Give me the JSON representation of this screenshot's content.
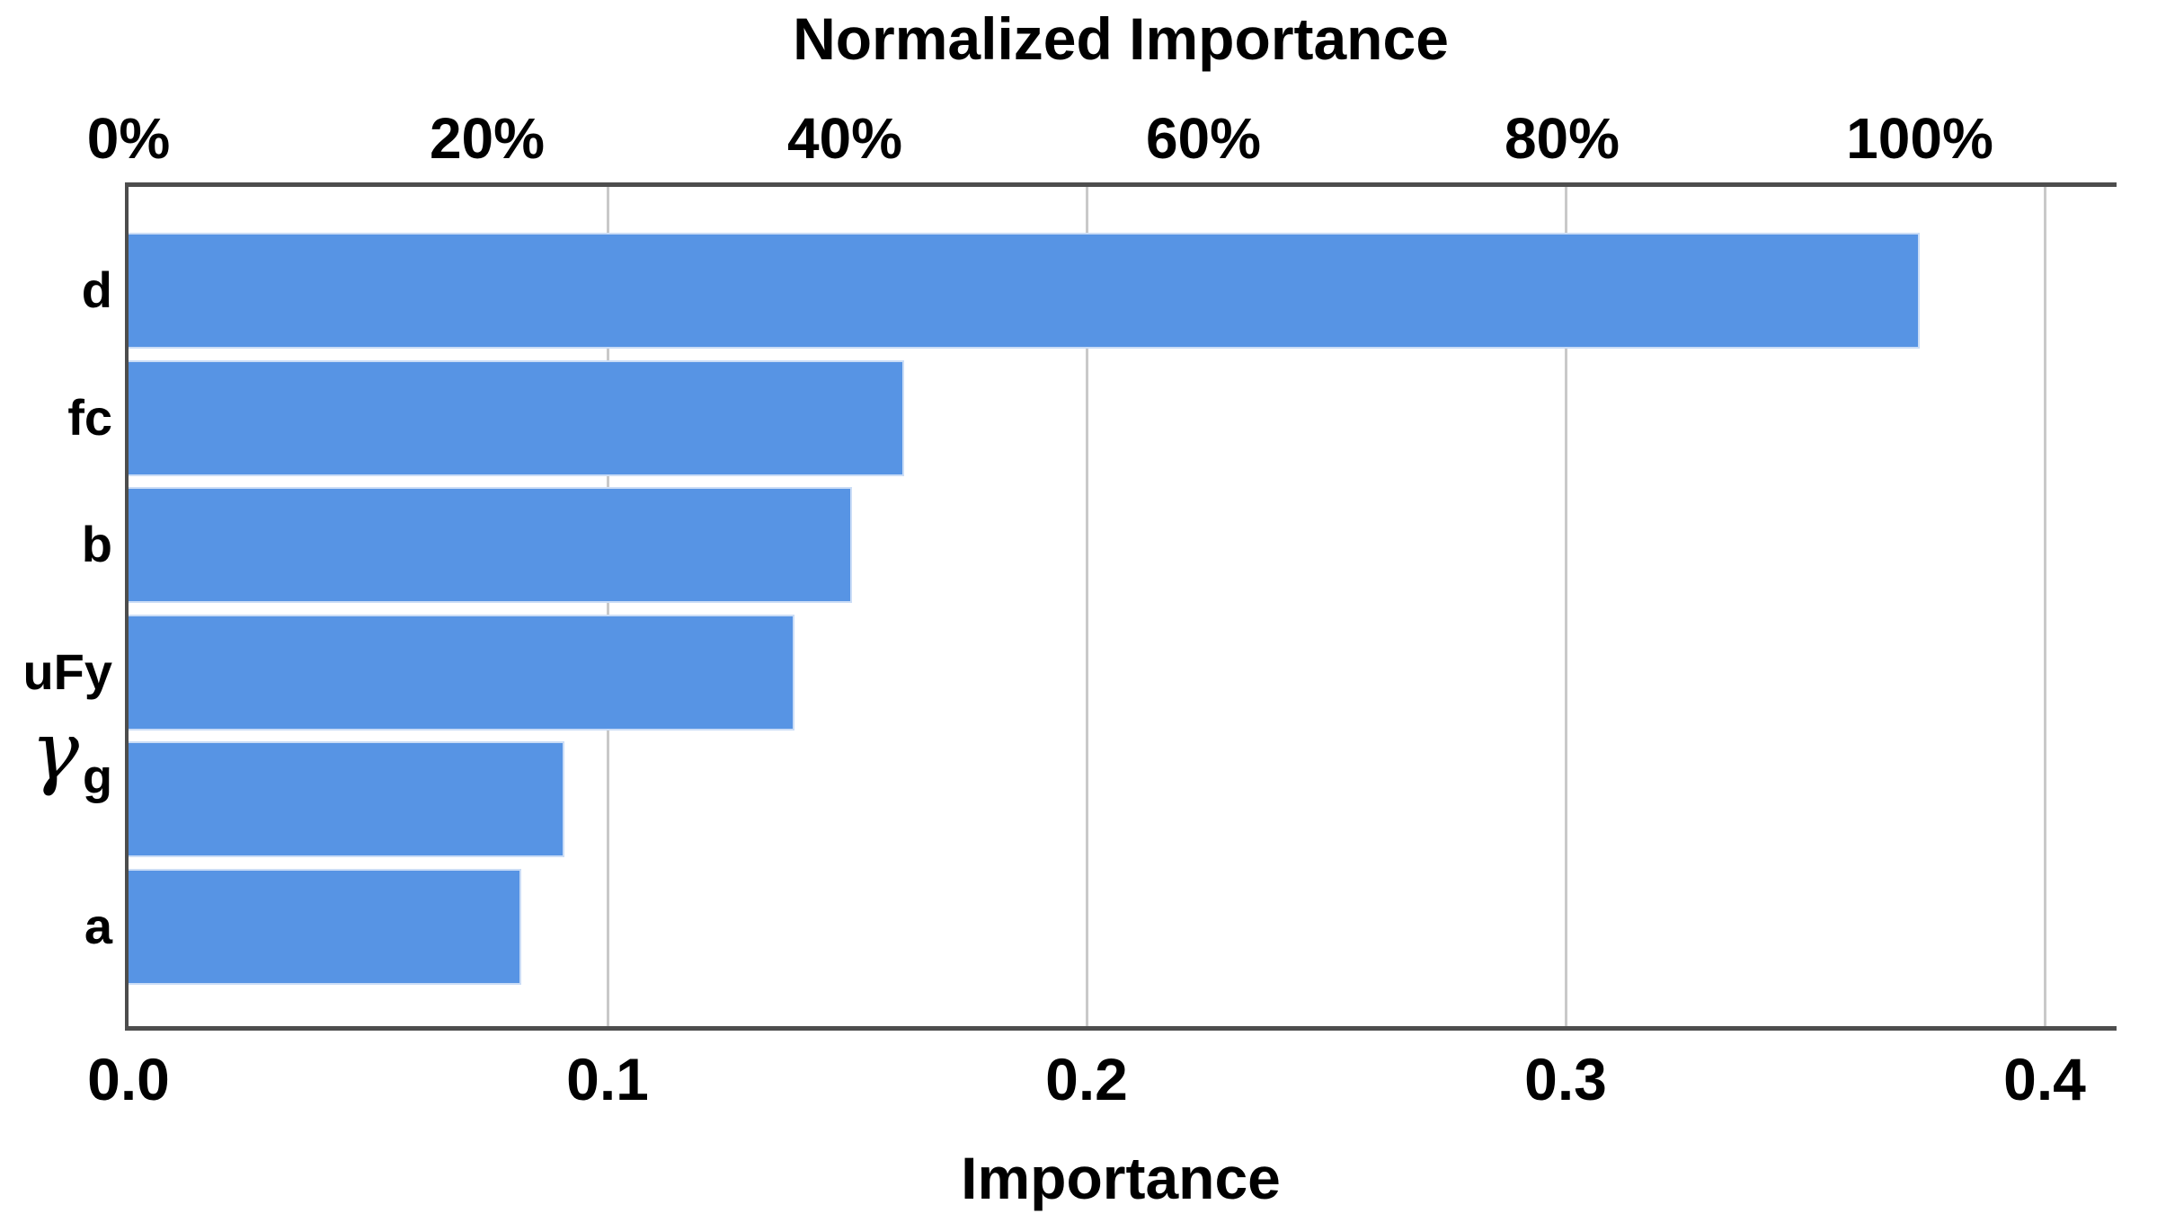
{
  "chart_data": {
    "type": "bar",
    "orientation": "horizontal",
    "title": "Normalized Importance",
    "xlabel": "Importance",
    "categories": [
      "d",
      "fc",
      "b",
      "uFy",
      "γg",
      "a"
    ],
    "category_labels": [
      {
        "text": "d"
      },
      {
        "text": "fc"
      },
      {
        "text": "b"
      },
      {
        "text": "uFy"
      },
      {
        "text": "γ",
        "sub": "g",
        "greek_italic": true
      },
      {
        "text": "a"
      }
    ],
    "values": [
      0.374,
      0.162,
      0.151,
      0.139,
      0.091,
      0.082
    ],
    "normalized_percent": [
      100,
      43.3,
      40.4,
      37.2,
      24.3,
      21.9
    ],
    "top_axis": {
      "tick_labels": [
        "0%",
        "20%",
        "40%",
        "60%",
        "80%",
        "100%"
      ],
      "tick_values": [
        0,
        20,
        40,
        60,
        80,
        100
      ],
      "importance_at_100pct": 0.374
    },
    "bottom_axis": {
      "tick_labels": [
        "0.0",
        "0.1",
        "0.2",
        "0.3",
        "0.4"
      ],
      "tick_values": [
        0,
        0.1,
        0.2,
        0.3,
        0.4
      ],
      "xlim": [
        0,
        0.415
      ]
    },
    "grid": true,
    "legend": false,
    "colors": {
      "bar": "#5794E4",
      "bar_border": "#CBDDF6",
      "gridline": "#C9C9C9",
      "frame": "#4D4D4D",
      "text": "#000000",
      "background": "#FFFFFF"
    }
  }
}
